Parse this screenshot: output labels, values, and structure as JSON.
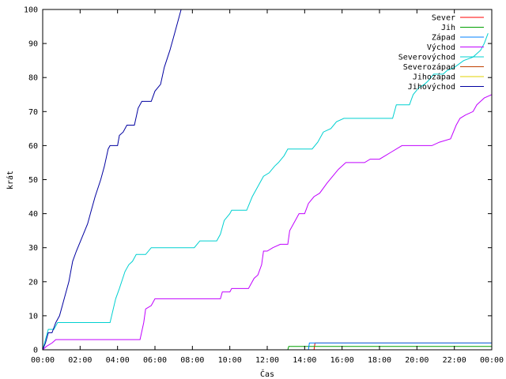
{
  "chart_data": {
    "type": "line",
    "title": "",
    "xlabel": "Čas",
    "ylabel": "krát",
    "xlim": [
      0,
      24
    ],
    "ylim": [
      0,
      100
    ],
    "x_unit": "hours",
    "x_ticks": [
      {
        "value": 0,
        "label": "00:00"
      },
      {
        "value": 2,
        "label": "02:00"
      },
      {
        "value": 4,
        "label": "04:00"
      },
      {
        "value": 6,
        "label": "06:00"
      },
      {
        "value": 8,
        "label": "08:00"
      },
      {
        "value": 10,
        "label": "10:00"
      },
      {
        "value": 12,
        "label": "12:00"
      },
      {
        "value": 14,
        "label": "14:00"
      },
      {
        "value": 16,
        "label": "16:00"
      },
      {
        "value": 18,
        "label": "18:00"
      },
      {
        "value": 20,
        "label": "20:00"
      },
      {
        "value": 22,
        "label": "22:00"
      },
      {
        "value": 24,
        "label": "00:00"
      }
    ],
    "y_ticks": [
      {
        "value": 0,
        "label": "0"
      },
      {
        "value": 10,
        "label": "10"
      },
      {
        "value": 20,
        "label": "20"
      },
      {
        "value": 30,
        "label": "30"
      },
      {
        "value": 40,
        "label": "40"
      },
      {
        "value": 50,
        "label": "50"
      },
      {
        "value": 60,
        "label": "60"
      },
      {
        "value": 70,
        "label": "70"
      },
      {
        "value": 80,
        "label": "80"
      },
      {
        "value": 90,
        "label": "90"
      },
      {
        "value": 100,
        "label": "100"
      }
    ],
    "grid": false,
    "legend_position": "top-right",
    "series": [
      {
        "name": "Sever",
        "color": "#ff0000",
        "points": [
          [
            0,
            0
          ],
          [
            14.5,
            0
          ],
          [
            14.55,
            2
          ],
          [
            24,
            2
          ]
        ]
      },
      {
        "name": "Jih",
        "color": "#00a000",
        "points": [
          [
            0,
            0
          ],
          [
            13.1,
            0
          ],
          [
            13.15,
            1
          ],
          [
            24,
            1
          ]
        ]
      },
      {
        "name": "Západ",
        "color": "#0080ff",
        "points": [
          [
            0,
            0
          ],
          [
            14.2,
            0
          ],
          [
            14.25,
            2
          ],
          [
            24,
            2
          ]
        ]
      },
      {
        "name": "Východ",
        "color": "#c000ff",
        "points": [
          [
            0,
            0
          ],
          [
            0.2,
            1
          ],
          [
            0.5,
            2
          ],
          [
            0.7,
            3
          ],
          [
            5.2,
            3
          ],
          [
            5.4,
            8
          ],
          [
            5.5,
            12
          ],
          [
            5.8,
            13
          ],
          [
            6,
            15
          ],
          [
            9.5,
            15
          ],
          [
            9.6,
            17
          ],
          [
            10,
            17
          ],
          [
            10.1,
            18
          ],
          [
            11,
            18
          ],
          [
            11.3,
            21
          ],
          [
            11.5,
            22
          ],
          [
            11.7,
            25
          ],
          [
            11.8,
            29
          ],
          [
            12,
            29
          ],
          [
            12.3,
            30
          ],
          [
            12.7,
            31
          ],
          [
            13.1,
            31
          ],
          [
            13.2,
            35
          ],
          [
            13.5,
            38
          ],
          [
            13.7,
            40
          ],
          [
            14,
            40
          ],
          [
            14.2,
            43
          ],
          [
            14.5,
            45
          ],
          [
            14.8,
            46
          ],
          [
            15.2,
            49
          ],
          [
            15.5,
            51
          ],
          [
            15.8,
            53
          ],
          [
            16.2,
            55
          ],
          [
            17.2,
            55
          ],
          [
            17.5,
            56
          ],
          [
            18,
            56
          ],
          [
            18.3,
            57
          ],
          [
            18.6,
            58
          ],
          [
            19.2,
            60
          ],
          [
            20.8,
            60
          ],
          [
            21.2,
            61
          ],
          [
            21.8,
            62
          ],
          [
            22.1,
            66
          ],
          [
            22.3,
            68
          ],
          [
            22.6,
            69
          ],
          [
            23,
            70
          ],
          [
            23.2,
            72
          ],
          [
            23.6,
            74
          ],
          [
            24,
            75
          ]
        ]
      },
      {
        "name": "Severovýchod",
        "color": "#00d0d0",
        "points": [
          [
            0,
            0
          ],
          [
            0.15,
            3
          ],
          [
            0.3,
            6
          ],
          [
            0.6,
            6
          ],
          [
            0.8,
            8
          ],
          [
            3.6,
            8
          ],
          [
            3.9,
            15
          ],
          [
            4.1,
            18
          ],
          [
            4.4,
            23
          ],
          [
            4.6,
            25
          ],
          [
            4.8,
            26
          ],
          [
            5,
            28
          ],
          [
            5.5,
            28
          ],
          [
            5.8,
            30
          ],
          [
            8.1,
            30
          ],
          [
            8.4,
            32
          ],
          [
            9.3,
            32
          ],
          [
            9.5,
            34
          ],
          [
            9.7,
            38
          ],
          [
            10,
            40
          ],
          [
            10.1,
            41
          ],
          [
            10.9,
            41
          ],
          [
            11.2,
            45
          ],
          [
            11.5,
            48
          ],
          [
            11.8,
            51
          ],
          [
            12.1,
            52
          ],
          [
            12.4,
            54
          ],
          [
            12.6,
            55
          ],
          [
            12.9,
            57
          ],
          [
            13.1,
            59
          ],
          [
            14.4,
            59
          ],
          [
            14.7,
            61
          ],
          [
            15,
            64
          ],
          [
            15.4,
            65
          ],
          [
            15.7,
            67
          ],
          [
            16.1,
            68
          ],
          [
            18.7,
            68
          ],
          [
            18.9,
            72
          ],
          [
            19.6,
            72
          ],
          [
            19.8,
            75
          ],
          [
            20.1,
            77
          ],
          [
            20.4,
            78
          ],
          [
            20.6,
            79
          ],
          [
            20.9,
            81
          ],
          [
            21.4,
            81
          ],
          [
            21.6,
            82
          ],
          [
            22,
            83
          ],
          [
            22.5,
            85
          ],
          [
            23,
            86
          ],
          [
            23.4,
            88
          ],
          [
            23.6,
            90
          ],
          [
            23.8,
            93
          ]
        ]
      },
      {
        "name": "Severozápad",
        "color": "#c04000",
        "points": [
          [
            0,
            0
          ],
          [
            24,
            0
          ]
        ]
      },
      {
        "name": "Jihozápad",
        "color": "#e0d000",
        "points": [
          [
            0,
            0
          ],
          [
            24,
            0
          ]
        ]
      },
      {
        "name": "Jihovýchod",
        "color": "#0000a0",
        "points": [
          [
            0,
            0
          ],
          [
            0.15,
            2
          ],
          [
            0.3,
            5
          ],
          [
            0.5,
            5
          ],
          [
            0.7,
            8
          ],
          [
            0.9,
            10
          ],
          [
            1.1,
            14
          ],
          [
            1.4,
            20
          ],
          [
            1.6,
            26
          ],
          [
            1.8,
            29
          ],
          [
            2.1,
            33
          ],
          [
            2.4,
            37
          ],
          [
            2.6,
            41
          ],
          [
            2.8,
            45
          ],
          [
            3.1,
            50
          ],
          [
            3.3,
            54
          ],
          [
            3.5,
            59
          ],
          [
            3.6,
            60
          ],
          [
            4,
            60
          ],
          [
            4.1,
            63
          ],
          [
            4.3,
            64
          ],
          [
            4.5,
            66
          ],
          [
            4.9,
            66
          ],
          [
            5.1,
            71
          ],
          [
            5.3,
            73
          ],
          [
            5.8,
            73
          ],
          [
            6,
            76
          ],
          [
            6.3,
            78
          ],
          [
            6.5,
            83
          ],
          [
            6.8,
            88
          ],
          [
            7,
            92
          ],
          [
            7.2,
            96
          ],
          [
            7.4,
            100
          ]
        ]
      }
    ]
  }
}
